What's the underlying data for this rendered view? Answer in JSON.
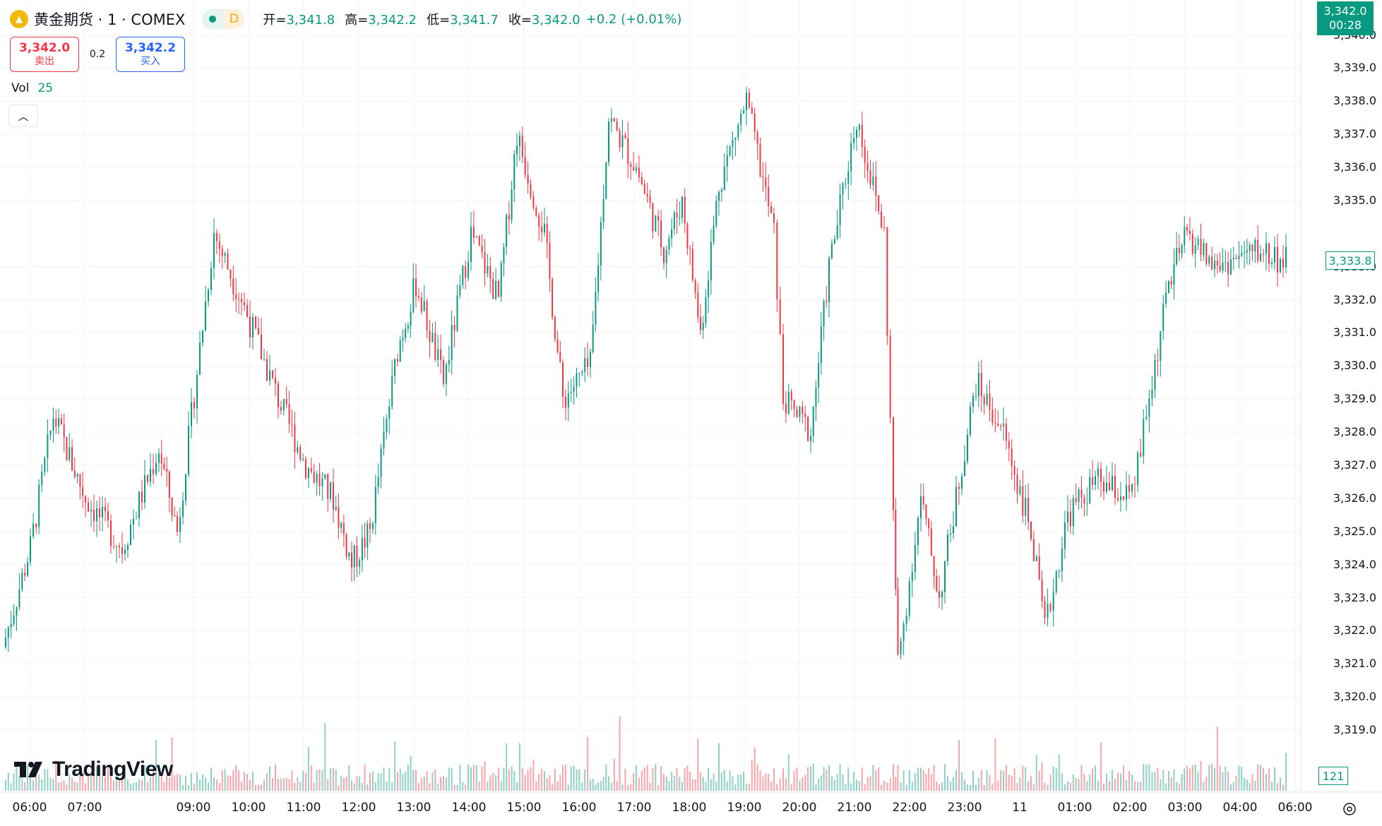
{
  "header": {
    "symbol_title": "黄金期货 · 1 · COMEX",
    "delay_badge": "D",
    "ohlc": [
      {
        "label": "开=",
        "value": "3,341.8"
      },
      {
        "label": "高=",
        "value": "3,342.2"
      },
      {
        "label": "低=",
        "value": "3,341.7"
      },
      {
        "label": "收=",
        "value": "3,342.0"
      }
    ],
    "change": "+0.2 (+0.01%)"
  },
  "trade": {
    "sell_price": "3,342.0",
    "sell_label": "卖出",
    "spread": "0.2",
    "buy_price": "3,342.2",
    "buy_label": "买入"
  },
  "volume_legend": {
    "label": "Vol",
    "value": "25"
  },
  "price_axis": {
    "labels": [
      "3,340.0",
      "3,339.0",
      "3,338.0",
      "3,337.0",
      "3,336.0",
      "3,335.0",
      "3,333.0",
      "3,332.0",
      "3,331.0",
      "3,330.0",
      "3,329.0",
      "3,328.0",
      "3,327.0",
      "3,326.0",
      "3,325.0",
      "3,324.0",
      "3,323.0",
      "3,322.0",
      "3,321.0",
      "3,320.0",
      "3,319.0"
    ],
    "last_price": "3,342.0",
    "countdown": "00:28",
    "cursor_price": "3,333.8",
    "volume_badge": "121"
  },
  "time_axis": {
    "labels": [
      "06:00",
      "07:00",
      "09:00",
      "10:00",
      "11:00",
      "12:00",
      "13:00",
      "14:00",
      "15:00",
      "16:00",
      "17:00",
      "18:00",
      "19:00",
      "20:00",
      "21:00",
      "22:00",
      "23:00",
      "11",
      "01:00",
      "02:00",
      "03:00",
      "04:00",
      "06:00"
    ]
  },
  "watermark": "TradingView",
  "colors": {
    "up": "#089981",
    "down": "#f23645",
    "accent": "#2962ff"
  },
  "chart_data": {
    "type": "candlestick",
    "title": "黄金期货 · 1 · COMEX",
    "ylim": [
      3317.7,
      3340.8
    ],
    "price_ticks": [
      3340,
      3339,
      3338,
      3337,
      3336,
      3335,
      3333,
      3332,
      3331,
      3330,
      3329,
      3328,
      3327,
      3326,
      3325,
      3324,
      3323,
      3322,
      3321,
      3320,
      3319
    ],
    "time_ticks": [
      "06:00",
      "07:00",
      "09:00",
      "10:00",
      "11:00",
      "12:00",
      "13:00",
      "14:00",
      "15:00",
      "16:00",
      "17:00",
      "18:00",
      "19:00",
      "20:00",
      "21:00",
      "22:00",
      "23:00",
      "11",
      "01:00",
      "02:00",
      "03:00",
      "04:00",
      "06:00"
    ],
    "approx_close_path": [
      {
        "time": "05:50",
        "price": 3321.5
      },
      {
        "time": "06:20",
        "price": 3324.5
      },
      {
        "time": "06:45",
        "price": 3328.5
      },
      {
        "time": "07:20",
        "price": 3326.0
      },
      {
        "time": "08:00",
        "price": 3324.5
      },
      {
        "time": "08:40",
        "price": 3327.5
      },
      {
        "time": "09:00",
        "price": 3325.0
      },
      {
        "time": "09:40",
        "price": 3334.0
      },
      {
        "time": "10:10",
        "price": 3332.0
      },
      {
        "time": "10:50",
        "price": 3329.0
      },
      {
        "time": "11:20",
        "price": 3327.0
      },
      {
        "time": "11:50",
        "price": 3326.0
      },
      {
        "time": "12:10",
        "price": 3324.0
      },
      {
        "time": "12:30",
        "price": 3325.0
      },
      {
        "time": "13:00",
        "price": 3330.5
      },
      {
        "time": "13:20",
        "price": 3332.5
      },
      {
        "time": "13:50",
        "price": 3329.5
      },
      {
        "time": "14:20",
        "price": 3334.0
      },
      {
        "time": "14:50",
        "price": 3332.0
      },
      {
        "time": "15:10",
        "price": 3337.0
      },
      {
        "time": "15:40",
        "price": 3334.0
      },
      {
        "time": "16:00",
        "price": 3329.0
      },
      {
        "time": "16:30",
        "price": 3330.0
      },
      {
        "time": "16:50",
        "price": 3337.5
      },
      {
        "time": "17:20",
        "price": 3336.0
      },
      {
        "time": "17:50",
        "price": 3333.5
      },
      {
        "time": "18:10",
        "price": 3335.0
      },
      {
        "time": "18:30",
        "price": 3331.0
      },
      {
        "time": "18:50",
        "price": 3335.5
      },
      {
        "time": "19:20",
        "price": 3338.0
      },
      {
        "time": "19:50",
        "price": 3334.0
      },
      {
        "time": "20:00",
        "price": 3329.0
      },
      {
        "time": "20:30",
        "price": 3328.0
      },
      {
        "time": "20:50",
        "price": 3333.0
      },
      {
        "time": "21:20",
        "price": 3337.5
      },
      {
        "time": "21:50",
        "price": 3334.0
      },
      {
        "time": "22:00",
        "price": 3325.5
      },
      {
        "time": "22:05",
        "price": 3321.0
      },
      {
        "time": "22:30",
        "price": 3326.0
      },
      {
        "time": "22:50",
        "price": 3323.0
      },
      {
        "time": "23:30",
        "price": 3329.5
      },
      {
        "time": "00:00",
        "price": 3328.0
      },
      {
        "time": "00:30",
        "price": 3325.0
      },
      {
        "time": "00:45",
        "price": 3322.0
      },
      {
        "time": "01:10",
        "price": 3325.5
      },
      {
        "time": "01:40",
        "price": 3326.5
      },
      {
        "time": "02:20",
        "price": 3326.0
      },
      {
        "time": "02:45",
        "price": 3330.0
      },
      {
        "time": "03:00",
        "price": 3332.5
      },
      {
        "time": "03:20",
        "price": 3334.0
      },
      {
        "time": "03:50",
        "price": 3333.0
      },
      {
        "time": "04:40",
        "price": 3333.5
      },
      {
        "time": "05:20",
        "price": 3333.0
      },
      {
        "time": "05:50",
        "price": 3335.0
      },
      {
        "time": "06:10",
        "price": 3333.5
      }
    ]
  }
}
